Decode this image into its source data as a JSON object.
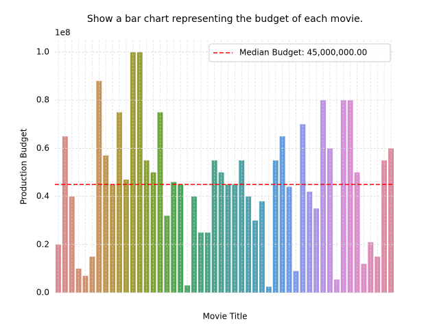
{
  "chart_data": {
    "type": "bar",
    "title": "Show a bar chart representing the budget of each movie.",
    "x_label": "Movie Title",
    "y_label": "Production Budget",
    "y_offset_label": "1e8",
    "categories": [
      null,
      null,
      null,
      null,
      null,
      null,
      null,
      null,
      null,
      null,
      null,
      null,
      null,
      null,
      null,
      null,
      null,
      null,
      null,
      null,
      null,
      null,
      null,
      null,
      null,
      null,
      null,
      null,
      null,
      null,
      null,
      null,
      null,
      null,
      null,
      null,
      null,
      null,
      null,
      null,
      null,
      null,
      null,
      null,
      null,
      null,
      null,
      null,
      null,
      null
    ],
    "values": [
      20000000,
      65000000,
      40000000,
      10000000,
      7000000,
      15000000,
      88000000,
      57000000,
      45000000,
      75000000,
      47000000,
      100000000,
      100000000,
      55000000,
      50000000,
      75000000,
      32000000,
      46000000,
      45000000,
      3000000,
      40000000,
      25000000,
      25000000,
      55000000,
      50000000,
      45000000,
      45000000,
      55000000,
      40000000,
      30000000,
      38000000,
      2500000,
      55000000,
      65000000,
      44000000,
      9000000,
      70000000,
      42000000,
      35000000,
      80000000,
      60000000,
      5500000,
      80000000,
      80000000,
      50000000,
      12000000,
      21000000,
      15000000,
      55000000,
      60000000
    ],
    "colors": [
      "#dc8a8f",
      "#db8b86",
      "#da8c7e",
      "#d88e74",
      "#d4906a",
      "#cf9260",
      "#c99456",
      "#c2964c",
      "#ba9844",
      "#b29a3e",
      "#a99b3b",
      "#9f9d3a",
      "#959e3a",
      "#8aa03b",
      "#7ea13e",
      "#71a343",
      "#64a44a",
      "#56a552",
      "#4ba65d",
      "#48a668",
      "#47a673",
      "#47a57c",
      "#47a584",
      "#47a48c",
      "#48a493",
      "#48a39a",
      "#49a3a0",
      "#4aa2a7",
      "#4ca2ae",
      "#4ea1b6",
      "#52a0bf",
      "#569fc8",
      "#5c9ed2",
      "#649dda",
      "#719be0",
      "#809ae3",
      "#9098e5",
      "#9f97e6",
      "#ad95e6",
      "#ba93e5",
      "#c591e3",
      "#ce8fe0",
      "#d68ddc",
      "#dc8cd6",
      "#df8bce",
      "#e08bc5",
      "#e08abc",
      "#e08ab2",
      "#df8aa8",
      "#de8a9e"
    ],
    "ylim": [
      0,
      105000000
    ],
    "yticks": [
      {
        "value": 0,
        "label": "0.0"
      },
      {
        "value": 20000000,
        "label": "0.2"
      },
      {
        "value": 40000000,
        "label": "0.4"
      },
      {
        "value": 60000000,
        "label": "0.6"
      },
      {
        "value": 80000000,
        "label": "0.8"
      },
      {
        "value": 100000000,
        "label": "1.0"
      }
    ],
    "grid": true,
    "median": 45000000,
    "median_color": "#ff0000",
    "median_label": "Median Budget: 45,000,000.00",
    "legend": "upper right"
  }
}
